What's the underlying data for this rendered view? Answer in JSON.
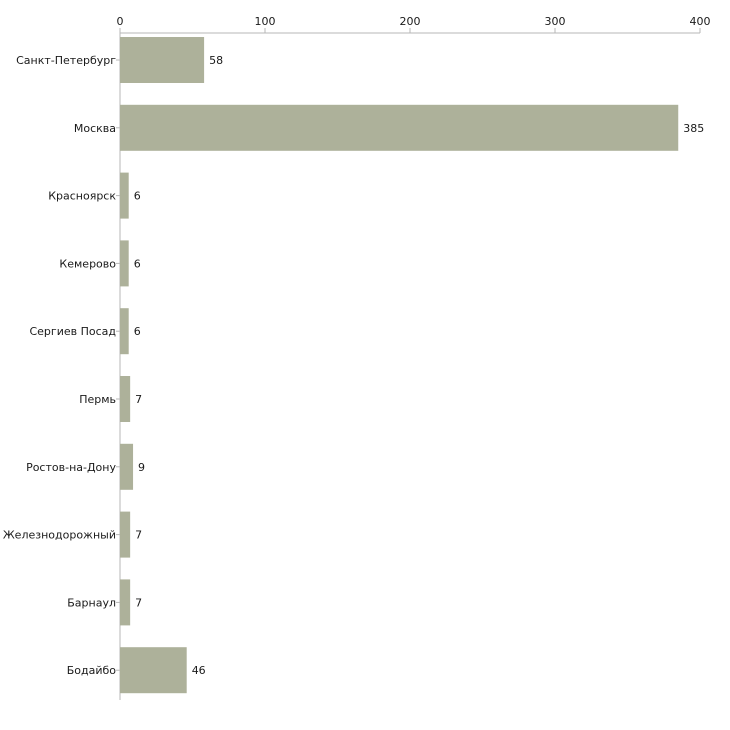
{
  "chart_data": {
    "type": "bar",
    "orientation": "horizontal",
    "title": "",
    "xlabel": "",
    "ylabel": "",
    "xlim": [
      0,
      400
    ],
    "xticks": [
      0,
      100,
      200,
      300,
      400
    ],
    "axis_position": "top",
    "grid": false,
    "bar_color": "#adb19a",
    "categories": [
      "Санкт-Петербург",
      "Москва",
      "Красноярск",
      "Кемерово",
      "Сергиев Посад",
      "Пермь",
      "Ростов-на-Дону",
      "Железнодорожный",
      "Барнаул",
      "Бодайбо"
    ],
    "values": [
      58,
      385,
      6,
      6,
      6,
      7,
      9,
      7,
      7,
      46
    ]
  }
}
